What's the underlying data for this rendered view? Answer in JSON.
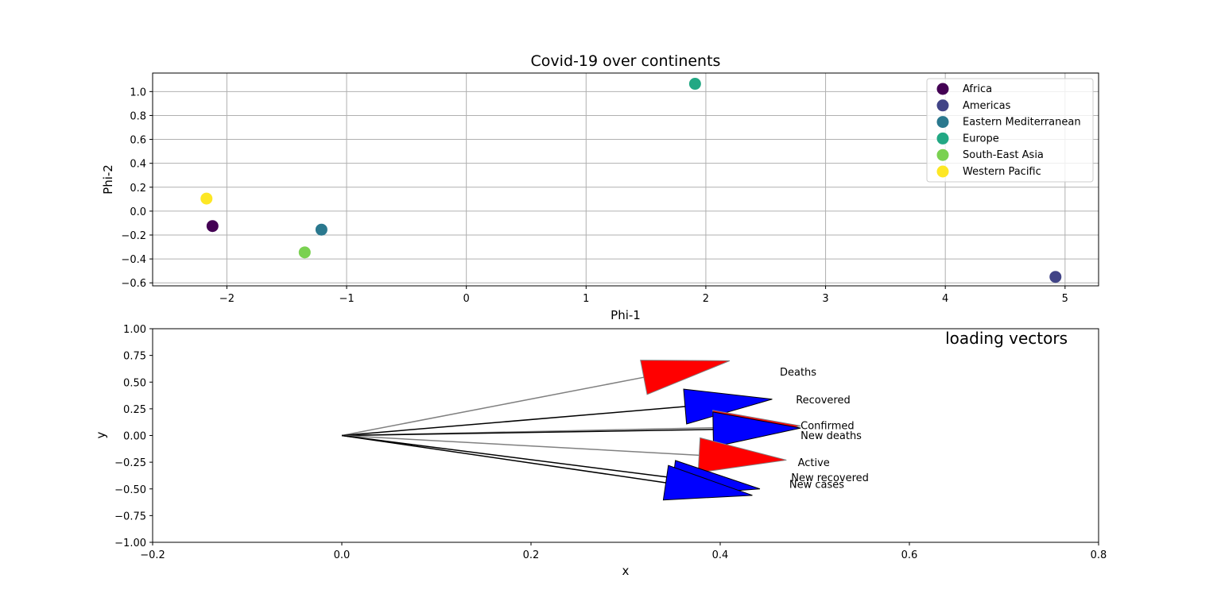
{
  "chart_data": [
    {
      "type": "scatter",
      "title": "Covid-19 over continents",
      "xlabel": "Phi-1",
      "ylabel": "Phi-2",
      "xlim": [
        -2.62,
        5.28
      ],
      "ylim": [
        -0.625,
        1.155
      ],
      "xticks": [
        -2,
        -1,
        0,
        1,
        2,
        3,
        4,
        5
      ],
      "xtick_labels": [
        "−2",
        "−1",
        "0",
        "1",
        "2",
        "3",
        "4",
        "5"
      ],
      "yticks": [
        1.0,
        0.8,
        0.6,
        0.4,
        0.2,
        0.0,
        -0.2,
        -0.4,
        -0.6
      ],
      "ytick_labels": [
        "1.0",
        "0.8",
        "0.6",
        "0.4",
        "0.2",
        "0.0",
        "−0.2",
        "−0.4",
        "−0.6"
      ],
      "grid": true,
      "legend_position": "top-right",
      "series": [
        {
          "name": "Africa",
          "color": "#440154",
          "x": -2.12,
          "y": -0.125
        },
        {
          "name": "Americas",
          "color": "#414487",
          "x": 4.92,
          "y": -0.55
        },
        {
          "name": "Eastern Mediterranean",
          "color": "#2a788e",
          "x": -1.21,
          "y": -0.155
        },
        {
          "name": "Europe",
          "color": "#22a884",
          "x": 1.91,
          "y": 1.065
        },
        {
          "name": "South-East Asia",
          "color": "#7ad151",
          "x": -1.35,
          "y": -0.345
        },
        {
          "name": "Western Pacific",
          "color": "#fde725",
          "x": -2.17,
          "y": 0.105
        }
      ]
    },
    {
      "type": "vector",
      "title": "loading vectors",
      "xlabel": "x",
      "ylabel": "y",
      "xlim": [
        -0.2,
        0.8
      ],
      "ylim": [
        -1.0,
        1.0
      ],
      "xticks": [
        -0.2,
        0.0,
        0.2,
        0.4,
        0.6,
        0.8
      ],
      "xtick_labels": [
        "−0.2",
        "0.0",
        "0.2",
        "0.4",
        "0.6",
        "0.8"
      ],
      "yticks": [
        1.0,
        0.75,
        0.5,
        0.25,
        0.0,
        -0.25,
        -0.5,
        -0.75,
        -1.0
      ],
      "ytick_labels": [
        "1.00",
        "0.75",
        "0.50",
        "0.25",
        "0.00",
        "−0.25",
        "−0.50",
        "−0.75",
        "−1.00"
      ],
      "grid": false,
      "origin": [
        0.0,
        0.0
      ],
      "vectors": [
        {
          "name": "Deaths",
          "x": 0.41,
          "y": 0.7,
          "color": "#ff0000",
          "edge": "#808080",
          "label_x": 0.463,
          "label_y": 0.6
        },
        {
          "name": "Recovered",
          "x": 0.455,
          "y": 0.34,
          "color": "#0000ff",
          "edge": "#000000",
          "label_x": 0.48,
          "label_y": 0.34
        },
        {
          "name": "Confirmed",
          "x": 0.485,
          "y": 0.09,
          "color": "#ff0000",
          "edge": "#808080",
          "label_x": 0.485,
          "label_y": 0.095
        },
        {
          "name": "New deaths",
          "x": 0.485,
          "y": 0.07,
          "color": "#0000ff",
          "edge": "#000000",
          "label_x": 0.485,
          "label_y": 0.005
        },
        {
          "name": "Active",
          "x": 0.47,
          "y": -0.23,
          "color": "#ff0000",
          "edge": "#808080",
          "label_x": 0.482,
          "label_y": -0.25
        },
        {
          "name": "New recovered",
          "x": 0.442,
          "y": -0.5,
          "color": "#0000ff",
          "edge": "#000000",
          "label_x": 0.475,
          "label_y": -0.39
        },
        {
          "name": "New cases",
          "x": 0.434,
          "y": -0.56,
          "color": "#0000ff",
          "edge": "#000000",
          "label_x": 0.473,
          "label_y": -0.455
        }
      ]
    }
  ]
}
